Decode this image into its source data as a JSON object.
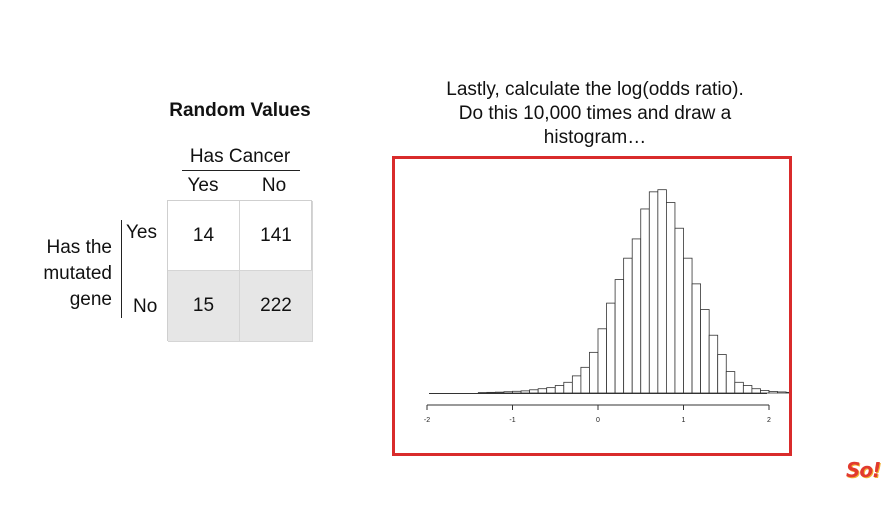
{
  "table": {
    "title": "Random Values",
    "col_group_label": "Has Cancer",
    "col_labels": [
      "Yes",
      "No"
    ],
    "row_group_label": [
      "Has the",
      "mutated",
      "gene"
    ],
    "row_labels": [
      "Yes",
      "No"
    ],
    "cells": [
      [
        "14",
        "141"
      ],
      [
        "15",
        "222"
      ]
    ]
  },
  "headline": {
    "lines": [
      "Lastly, calculate the log(odds ratio).",
      "Do this 10,000 times and draw a",
      "histogram…"
    ]
  },
  "colors": {
    "frame_border": "#d92b2b",
    "shaded_row": "#e6e6e6",
    "bar_fill": "#ffffff",
    "bar_stroke": "#333333"
  },
  "logo": {
    "text": "So!"
  },
  "chart_data": {
    "type": "bar",
    "xlim": [
      -2,
      2
    ],
    "xticks": [
      "-2",
      "-1",
      "0",
      "1",
      "2"
    ],
    "bin_width": 0.1,
    "bin_start": -2,
    "ylim": [
      0,
      100
    ],
    "values": [
      0,
      0,
      0,
      0,
      0,
      0,
      0.2,
      0.3,
      0.4,
      0.6,
      0.8,
      1,
      1.5,
      2,
      2.5,
      3.5,
      5,
      8,
      12,
      19,
      30,
      42,
      53,
      63,
      72,
      86,
      94,
      95,
      89,
      77,
      63,
      51,
      39,
      27,
      18,
      10,
      5,
      3.5,
      2,
      1.2,
      0.7,
      0.5,
      0.3,
      0.2,
      0
    ]
  }
}
